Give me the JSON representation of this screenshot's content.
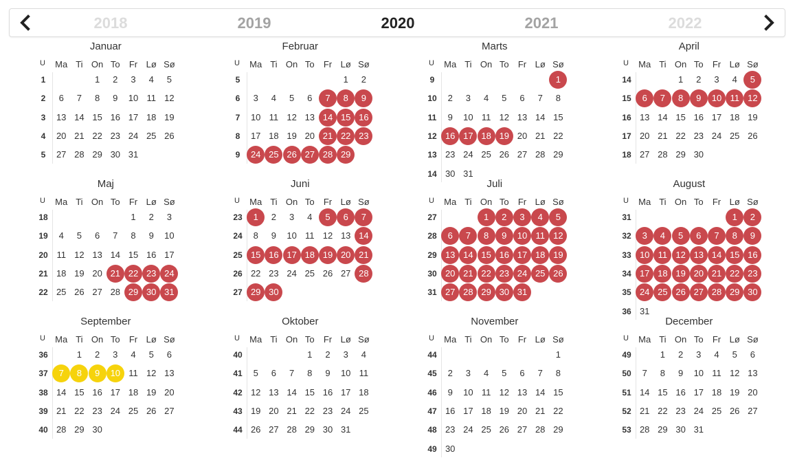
{
  "nav": {
    "prev_icon": "chevron-left-icon",
    "next_icon": "chevron-right-icon",
    "years": [
      "2018",
      "2019",
      "2020",
      "2021",
      "2022"
    ],
    "current_year": "2020"
  },
  "colors": {
    "booked": "#c9484d",
    "selected": "#f6d30c",
    "disabled_year": "#dcdcdc",
    "near_year": "#a3a3a3"
  },
  "headers": {
    "week": "U",
    "days": [
      "Ma",
      "Ti",
      "On",
      "To",
      "Fr",
      "Lø",
      "Sø"
    ]
  },
  "months": [
    {
      "name": "Januar",
      "weeks": [
        1,
        2,
        3,
        4,
        5
      ],
      "offset": 2,
      "days": 31,
      "red": [],
      "yellow": []
    },
    {
      "name": "Februar",
      "weeks": [
        5,
        6,
        7,
        8,
        9
      ],
      "offset": 5,
      "days": 29,
      "red": [
        7,
        8,
        9,
        14,
        15,
        16,
        21,
        22,
        23,
        24,
        25,
        26,
        27,
        28,
        29
      ],
      "yellow": []
    },
    {
      "name": "Marts",
      "weeks": [
        9,
        10,
        11,
        12,
        13,
        14
      ],
      "offset": 6,
      "days": 31,
      "red": [
        1,
        16,
        17,
        18,
        19
      ],
      "yellow": []
    },
    {
      "name": "April",
      "weeks": [
        14,
        15,
        16,
        17,
        18
      ],
      "offset": 2,
      "days": 30,
      "red": [
        5,
        6,
        7,
        8,
        9,
        10,
        11,
        12
      ],
      "yellow": []
    },
    {
      "name": "Maj",
      "weeks": [
        18,
        19,
        20,
        21,
        22
      ],
      "offset": 4,
      "days": 31,
      "red": [
        21,
        22,
        23,
        24,
        29,
        30,
        31
      ],
      "yellow": []
    },
    {
      "name": "Juni",
      "weeks": [
        23,
        24,
        25,
        26,
        27
      ],
      "offset": 0,
      "days": 30,
      "red": [
        1,
        5,
        6,
        7,
        14,
        15,
        16,
        17,
        18,
        19,
        20,
        21,
        28,
        29,
        30
      ],
      "yellow": []
    },
    {
      "name": "Juli",
      "weeks": [
        27,
        28,
        29,
        30,
        31
      ],
      "offset": 2,
      "days": 31,
      "red": [
        1,
        2,
        3,
        4,
        5,
        6,
        7,
        8,
        9,
        10,
        11,
        12,
        13,
        14,
        15,
        16,
        17,
        18,
        19,
        20,
        21,
        22,
        23,
        24,
        25,
        26,
        27,
        28,
        29,
        30,
        31
      ],
      "yellow": []
    },
    {
      "name": "August",
      "weeks": [
        31,
        32,
        33,
        34,
        35,
        36
      ],
      "offset": 5,
      "days": 31,
      "red": [
        1,
        2,
        3,
        4,
        5,
        6,
        7,
        8,
        9,
        10,
        11,
        12,
        13,
        14,
        15,
        16,
        17,
        18,
        19,
        20,
        21,
        22,
        23,
        24,
        25,
        26,
        27,
        28,
        29,
        30
      ],
      "yellow": []
    },
    {
      "name": "September",
      "weeks": [
        36,
        37,
        38,
        39,
        40
      ],
      "offset": 1,
      "days": 30,
      "red": [],
      "yellow": [
        7,
        8,
        9,
        10
      ]
    },
    {
      "name": "Oktober",
      "weeks": [
        40,
        41,
        42,
        43,
        44
      ],
      "offset": 3,
      "days": 31,
      "red": [],
      "yellow": []
    },
    {
      "name": "November",
      "weeks": [
        44,
        45,
        46,
        47,
        48,
        49
      ],
      "offset": 6,
      "days": 30,
      "red": [],
      "yellow": []
    },
    {
      "name": "December",
      "weeks": [
        49,
        50,
        51,
        52,
        53
      ],
      "offset": 1,
      "days": 31,
      "red": [],
      "yellow": []
    }
  ]
}
